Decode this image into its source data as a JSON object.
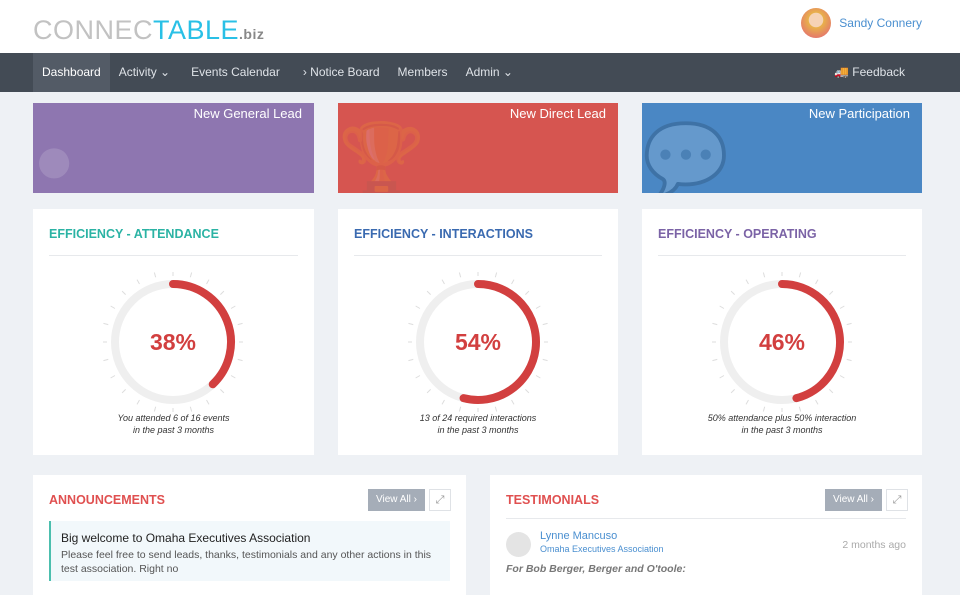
{
  "header": {
    "logo": {
      "part1": "CONNEC",
      "part2": "TABLE",
      "part3": ".biz"
    },
    "user_name": "Sandy Connery"
  },
  "nav": {
    "items": [
      {
        "label": "Dashboard"
      },
      {
        "label": "Activity ⌄"
      },
      {
        "label": "Events Calendar"
      },
      {
        "label": "› Notice Board"
      },
      {
        "label": "Members"
      },
      {
        "label": "Admin ⌄"
      }
    ],
    "feedback": "Feedback"
  },
  "tiles": [
    {
      "label": "New General Lead",
      "color": "#8e76b0"
    },
    {
      "label": "New Direct Lead",
      "color": "#d65550"
    },
    {
      "label": "New Participation",
      "color": "#4a87c4"
    }
  ],
  "gauges": [
    {
      "title": "EFFICIENCY - ATTENDANCE",
      "value": 38,
      "value_label": "38%",
      "caption1": "You attended 6 of 16 events",
      "caption2": "in the past 3 months",
      "title_color": "#2bb3a4"
    },
    {
      "title": "EFFICIENCY - INTERACTIONS",
      "value": 54,
      "value_label": "54%",
      "caption1": "13 of 24 required interactions",
      "caption2": "in the past 3 months",
      "title_color": "#3a6ab0"
    },
    {
      "title": "EFFICIENCY - OPERATING",
      "value": 46,
      "value_label": "46%",
      "caption1": "50% attendance plus 50% interaction",
      "caption2": "in the past 3 months",
      "title_color": "#7b63a6"
    }
  ],
  "announcements": {
    "title": "ANNOUNCEMENTS",
    "view_all": "View All ›",
    "item_title": "Big welcome to Omaha Executives Association",
    "item_body": "Please feel free to send leads, thanks, testimonials and any other actions in this test association. Right no"
  },
  "testimonials": {
    "title": "TESTIMONIALS",
    "view_all": "View All ›",
    "name": "Lynne Mancuso",
    "org": "Omaha Executives Association",
    "time": "2 months ago",
    "text": "For Bob Berger, Berger and O'toole:"
  }
}
